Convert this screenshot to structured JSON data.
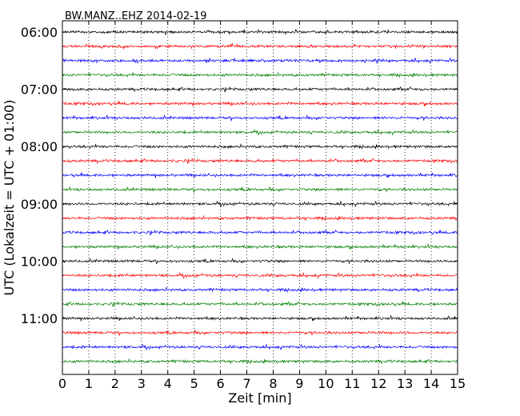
{
  "chart_data": {
    "type": "line",
    "title": "BW.MANZ..EHZ 2014-02-19",
    "xlabel": "Zeit  [min]",
    "ylabel": "UTC (Lokalzeit = UTC + 01:00)",
    "xlim": [
      0,
      15
    ],
    "x_ticks": [
      "0",
      "1",
      "2",
      "3",
      "4",
      "5",
      "6",
      "7",
      "8",
      "9",
      "10",
      "11",
      "12",
      "13",
      "14",
      "15"
    ],
    "y_tick_labels": [
      "06:00",
      "07:00",
      "08:00",
      "09:00",
      "10:00",
      "11:00"
    ],
    "grid": "vertical dotted at each minute",
    "trace_interval_min": 15,
    "trace_start": "06:00",
    "color_cycle": [
      "#000000",
      "#ff0000",
      "#0000ff",
      "#008000"
    ],
    "series": [
      {
        "start": "06:00"
      },
      {
        "start": "06:15"
      },
      {
        "start": "06:30"
      },
      {
        "start": "06:45"
      },
      {
        "start": "07:00"
      },
      {
        "start": "07:15"
      },
      {
        "start": "07:30"
      },
      {
        "start": "07:45"
      },
      {
        "start": "08:00"
      },
      {
        "start": "08:15"
      },
      {
        "start": "08:30"
      },
      {
        "start": "08:45"
      },
      {
        "start": "09:00"
      },
      {
        "start": "09:15"
      },
      {
        "start": "09:30"
      },
      {
        "start": "09:45"
      },
      {
        "start": "10:00"
      },
      {
        "start": "10:15"
      },
      {
        "start": "10:30"
      },
      {
        "start": "10:45"
      },
      {
        "start": "11:00"
      },
      {
        "start": "11:15"
      },
      {
        "start": "11:30"
      },
      {
        "start": "11:45"
      }
    ]
  }
}
